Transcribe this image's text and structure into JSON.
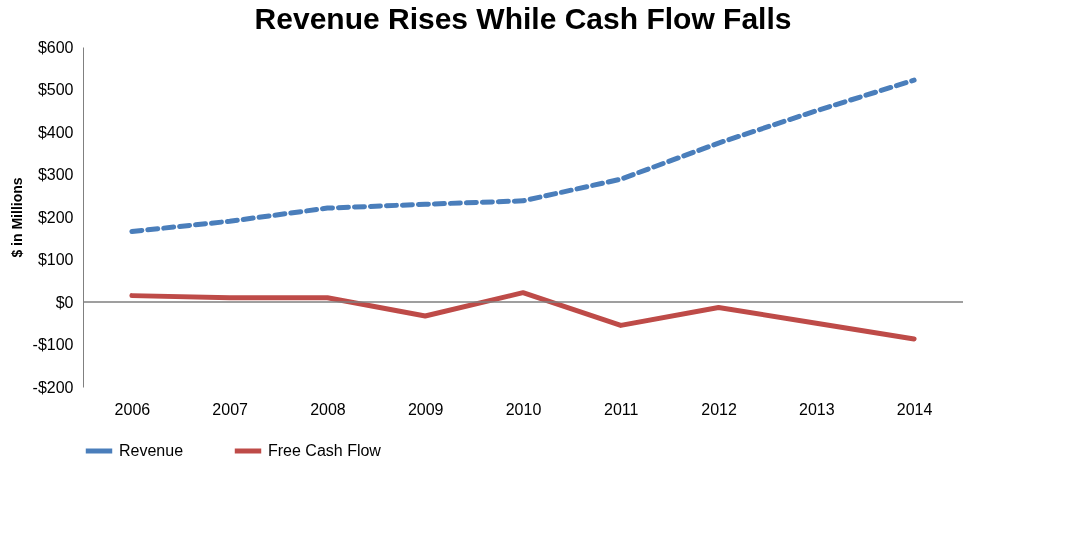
{
  "chart_data": {
    "type": "line",
    "title": "Revenue Rises While Cash Flow Falls",
    "ylabel": "$ in Millions",
    "categories": [
      "2006",
      "2007",
      "2008",
      "2009",
      "2010",
      "2011",
      "2012",
      "2013",
      "2014"
    ],
    "series": [
      {
        "name": "Revenue",
        "color": "#4a7ebb",
        "line_style": "dashed",
        "values": [
          166,
          190,
          221,
          230,
          238,
          289,
          374,
          450,
          522
        ]
      },
      {
        "name": "Free Cash Flow",
        "color": "#be4b48",
        "line_style": "solid",
        "values": [
          15,
          10,
          10,
          -33,
          22,
          -55,
          -13,
          -50,
          -87
        ]
      }
    ],
    "ylim": [
      -200,
      600
    ],
    "yticks": [
      {
        "value": -200,
        "label": "-$200"
      },
      {
        "value": -100,
        "label": "-$100"
      },
      {
        "value": 0,
        "label": "$0"
      },
      {
        "value": 100,
        "label": "$100"
      },
      {
        "value": 200,
        "label": "$200"
      },
      {
        "value": 300,
        "label": "$300"
      },
      {
        "value": 400,
        "label": "$400"
      },
      {
        "value": 500,
        "label": "$500"
      },
      {
        "value": 600,
        "label": "$600"
      }
    ],
    "ref_lines": [
      {
        "axis": "y",
        "value": 0,
        "color": "#808080"
      }
    ],
    "grid": false,
    "legend": "bottom",
    "marker": "none"
  }
}
